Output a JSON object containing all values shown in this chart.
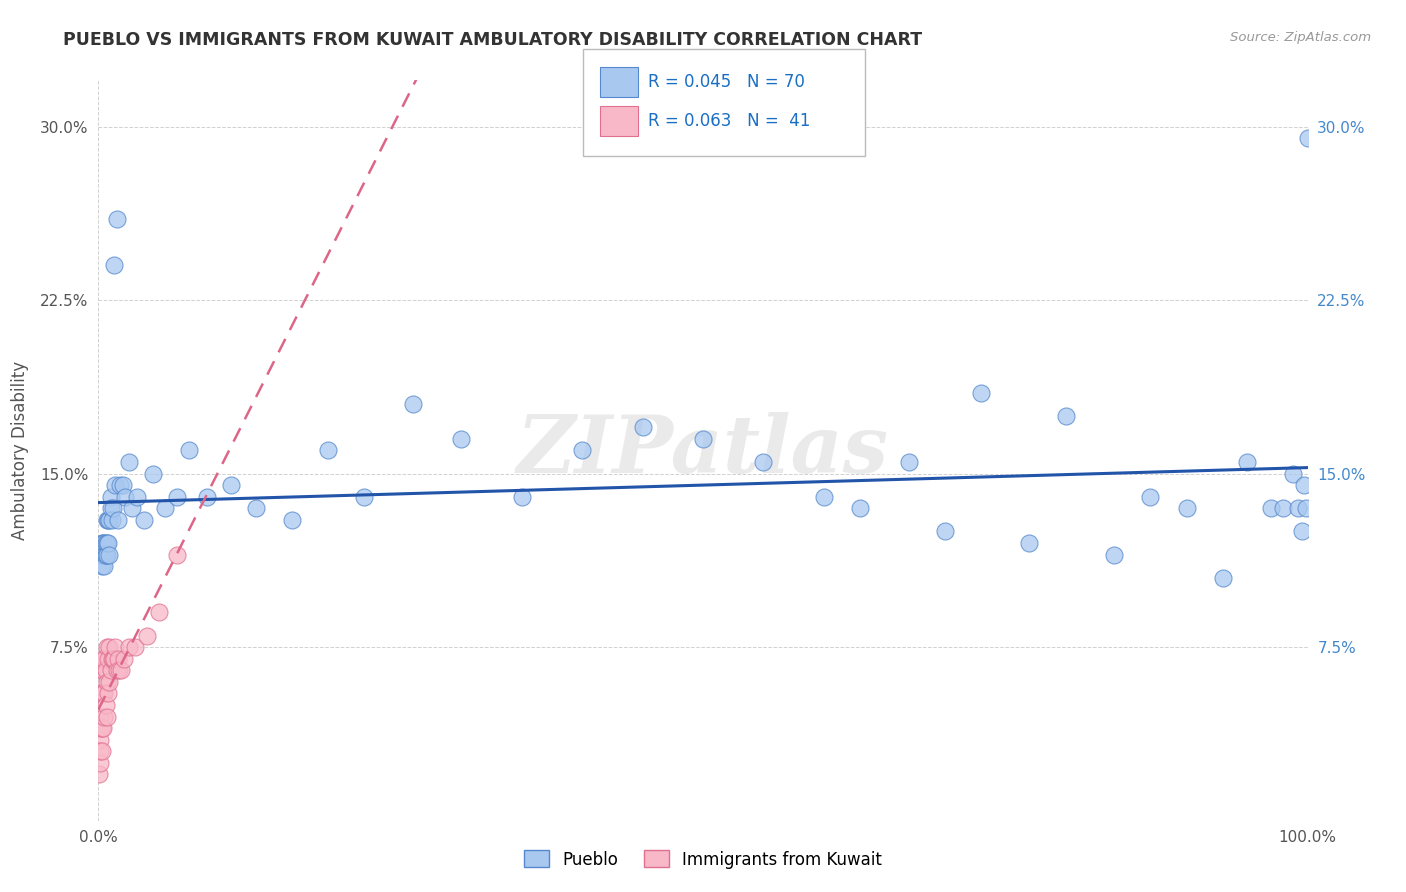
{
  "title": "PUEBLO VS IMMIGRANTS FROM KUWAIT AMBULATORY DISABILITY CORRELATION CHART",
  "source": "Source: ZipAtlas.com",
  "xlabel": "",
  "ylabel": "Ambulatory Disability",
  "xlim": [
    0,
    1.0
  ],
  "ylim": [
    0,
    0.32
  ],
  "xtick_positions": [
    0.0,
    1.0
  ],
  "ytick_positions": [
    0.075,
    0.15,
    0.225,
    0.3
  ],
  "pueblo_color": "#a8c8f0",
  "pueblo_edge_color": "#5588cc",
  "kuwait_color": "#f8b8c8",
  "kuwait_edge_color": "#e07090",
  "legend_box_pueblo": "#a8c8f0",
  "legend_box_kuwait": "#f8b8c8",
  "pueblo_R": 0.045,
  "pueblo_N": 70,
  "kuwait_R": 0.063,
  "kuwait_N": 41,
  "trend_pueblo_color": "#2255aa",
  "trend_kuwait_color": "#dd6688",
  "watermark_text": "ZIPatlas",
  "pueblo_x": [
    0.002,
    0.003,
    0.003,
    0.004,
    0.004,
    0.005,
    0.005,
    0.005,
    0.006,
    0.006,
    0.006,
    0.007,
    0.007,
    0.007,
    0.008,
    0.008,
    0.009,
    0.009,
    0.01,
    0.01,
    0.011,
    0.012,
    0.013,
    0.014,
    0.015,
    0.016,
    0.018,
    0.02,
    0.022,
    0.025,
    0.028,
    0.032,
    0.038,
    0.045,
    0.055,
    0.065,
    0.075,
    0.09,
    0.11,
    0.13,
    0.16,
    0.19,
    0.22,
    0.26,
    0.3,
    0.35,
    0.4,
    0.45,
    0.5,
    0.55,
    0.6,
    0.63,
    0.67,
    0.7,
    0.73,
    0.77,
    0.8,
    0.84,
    0.87,
    0.9,
    0.93,
    0.95,
    0.97,
    0.98,
    0.988,
    0.992,
    0.995,
    0.997,
    0.999,
    1.0
  ],
  "pueblo_y": [
    0.115,
    0.12,
    0.11,
    0.12,
    0.115,
    0.12,
    0.115,
    0.11,
    0.12,
    0.115,
    0.115,
    0.12,
    0.13,
    0.115,
    0.13,
    0.12,
    0.115,
    0.13,
    0.14,
    0.135,
    0.13,
    0.135,
    0.24,
    0.145,
    0.26,
    0.13,
    0.145,
    0.145,
    0.14,
    0.155,
    0.135,
    0.14,
    0.13,
    0.15,
    0.135,
    0.14,
    0.16,
    0.14,
    0.145,
    0.135,
    0.13,
    0.16,
    0.14,
    0.18,
    0.165,
    0.14,
    0.16,
    0.17,
    0.165,
    0.155,
    0.14,
    0.135,
    0.155,
    0.125,
    0.185,
    0.12,
    0.175,
    0.115,
    0.14,
    0.135,
    0.105,
    0.155,
    0.135,
    0.135,
    0.15,
    0.135,
    0.125,
    0.145,
    0.135,
    0.295
  ],
  "kuwait_x": [
    0.0005,
    0.001,
    0.001,
    0.001,
    0.0015,
    0.002,
    0.002,
    0.002,
    0.003,
    0.003,
    0.003,
    0.004,
    0.004,
    0.004,
    0.005,
    0.005,
    0.005,
    0.006,
    0.006,
    0.007,
    0.007,
    0.007,
    0.008,
    0.008,
    0.009,
    0.009,
    0.01,
    0.011,
    0.012,
    0.013,
    0.014,
    0.015,
    0.016,
    0.017,
    0.019,
    0.021,
    0.025,
    0.03,
    0.04,
    0.05,
    0.065
  ],
  "kuwait_y": [
    0.02,
    0.025,
    0.035,
    0.045,
    0.03,
    0.04,
    0.055,
    0.065,
    0.03,
    0.04,
    0.07,
    0.04,
    0.055,
    0.065,
    0.045,
    0.055,
    0.07,
    0.05,
    0.065,
    0.045,
    0.06,
    0.075,
    0.055,
    0.07,
    0.06,
    0.075,
    0.065,
    0.07,
    0.07,
    0.07,
    0.075,
    0.065,
    0.07,
    0.065,
    0.065,
    0.07,
    0.075,
    0.075,
    0.08,
    0.09,
    0.115
  ],
  "bottom_labels": [
    "Pueblo",
    "Immigrants from Kuwait"
  ],
  "background_color": "#ffffff",
  "plot_bg_color": "#ffffff",
  "grid_color": "#cccccc"
}
